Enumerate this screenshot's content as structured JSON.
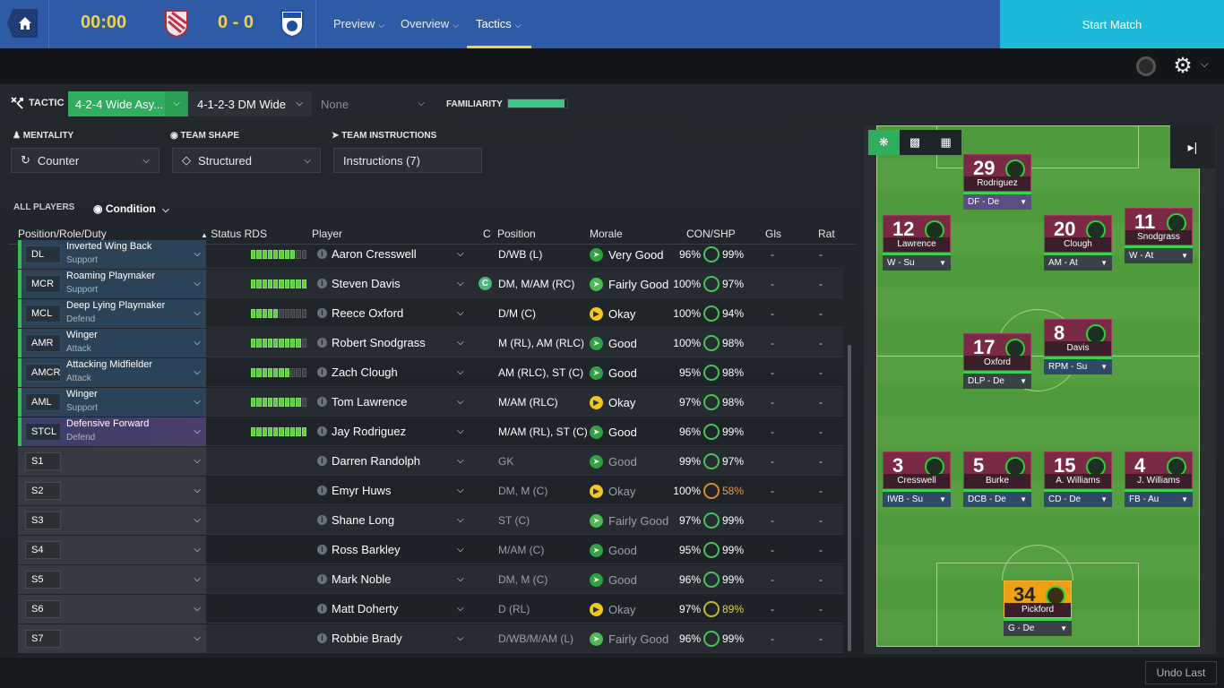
{
  "topbar": {
    "clock": "00:00",
    "score": "0 - 0",
    "nav": [
      {
        "label": "Preview"
      },
      {
        "label": "Overview"
      },
      {
        "label": "Tactics"
      }
    ],
    "start_label": "Start Match"
  },
  "tactic": {
    "label": "TACTIC",
    "tactic1": "4-2-4 Wide Asy...",
    "tactic2": "4-1-2-3 DM Wide",
    "tactic3": "None",
    "familiarity_label": "FAMILIARITY",
    "familiarity_value": 0.95
  },
  "controls": {
    "mentality_label": "MENTALITY",
    "mentality_value": "Counter",
    "shape_label": "TEAM SHAPE",
    "shape_value": "Structured",
    "instr_label": "TEAM INSTRUCTIONS",
    "instr_value": "Instructions (7)"
  },
  "table": {
    "all_players": "ALL PLAYERS",
    "condition": "Condition",
    "headers": {
      "role": "Position/Role/Duty",
      "status": "Status RDS",
      "player": "Player",
      "c": "C",
      "position": "Position",
      "morale": "Morale",
      "conshp": "CON/SHP",
      "gls": "Gls",
      "rat": "Rat"
    },
    "rows": [
      {
        "pos": "DL",
        "role": "Inverted Wing Back",
        "duty": "Support",
        "rds": 8,
        "player": "Aaron Cresswell",
        "cap": "",
        "position": "D/WB (L)",
        "morale": "Very Good",
        "mclass": "good",
        "con": "96%",
        "shp": "99%",
        "gls": "-",
        "rat": "-"
      },
      {
        "pos": "MCR",
        "role": "Roaming Playmaker",
        "duty": "Support",
        "rds": 10,
        "player": "Steven Davis",
        "cap": "C",
        "position": "DM, M/AM (RC)",
        "morale": "Fairly Good",
        "mclass": "fg",
        "con": "100%",
        "shp": "97%",
        "gls": "-",
        "rat": "-"
      },
      {
        "pos": "MCL",
        "role": "Deep Lying Playmaker",
        "duty": "Defend",
        "rds": 5,
        "player": "Reece Oxford",
        "cap": "",
        "position": "D/M (C)",
        "morale": "Okay",
        "mclass": "ok",
        "con": "100%",
        "shp": "94%",
        "gls": "-",
        "rat": "-"
      },
      {
        "pos": "AMR",
        "role": "Winger",
        "duty": "Attack",
        "rds": 9,
        "player": "Robert Snodgrass",
        "cap": "",
        "position": "M (RL), AM (RLC)",
        "morale": "Good",
        "mclass": "good",
        "con": "100%",
        "shp": "98%",
        "gls": "-",
        "rat": "-"
      },
      {
        "pos": "AMCR",
        "role": "Attacking Midfielder",
        "duty": "Attack",
        "rds": 7,
        "player": "Zach Clough",
        "cap": "",
        "position": "AM (RLC), ST (C)",
        "morale": "Good",
        "mclass": "good",
        "con": "95%",
        "shp": "98%",
        "gls": "-",
        "rat": "-"
      },
      {
        "pos": "AML",
        "role": "Winger",
        "duty": "Support",
        "rds": 9,
        "player": "Tom Lawrence",
        "cap": "",
        "position": "M/AM (RLC)",
        "morale": "Okay",
        "mclass": "ok",
        "con": "97%",
        "shp": "98%",
        "gls": "-",
        "rat": "-"
      },
      {
        "pos": "STCL",
        "role": "Defensive Forward",
        "duty": "Defend",
        "rds": 10,
        "player": "Jay Rodriguez",
        "cap": "",
        "position": "M/AM (RL), ST (C)",
        "morale": "Good",
        "mclass": "good",
        "con": "96%",
        "shp": "99%",
        "gls": "-",
        "rat": "-"
      }
    ],
    "subs": [
      {
        "pos": "S1",
        "player": "Darren Randolph",
        "position": "GK",
        "morale": "Good",
        "mclass": "good",
        "con": "99%",
        "shp": "97%",
        "sclass": "",
        "gls": "-",
        "rat": "-"
      },
      {
        "pos": "S2",
        "player": "Emyr Huws",
        "position": "DM, M (C)",
        "morale": "Okay",
        "mclass": "ok",
        "con": "100%",
        "shp": "58%",
        "sclass": "low",
        "gls": "-",
        "rat": "-"
      },
      {
        "pos": "S3",
        "player": "Shane Long",
        "position": "ST (C)",
        "morale": "Fairly Good",
        "mclass": "fg",
        "con": "97%",
        "shp": "99%",
        "sclass": "",
        "gls": "-",
        "rat": "-"
      },
      {
        "pos": "S4",
        "player": "Ross Barkley",
        "position": "M/AM (C)",
        "morale": "Good",
        "mclass": "good",
        "con": "95%",
        "shp": "99%",
        "sclass": "",
        "gls": "-",
        "rat": "-"
      },
      {
        "pos": "S5",
        "player": "Mark Noble",
        "position": "DM, M (C)",
        "morale": "Good",
        "mclass": "good",
        "con": "96%",
        "shp": "99%",
        "sclass": "",
        "gls": "-",
        "rat": "-"
      },
      {
        "pos": "S6",
        "player": "Matt Doherty",
        "position": "D (RL)",
        "morale": "Okay",
        "mclass": "ok",
        "con": "97%",
        "shp": "89%",
        "sclass": "mid",
        "gls": "-",
        "rat": "-"
      },
      {
        "pos": "S7",
        "player": "Robbie Brady",
        "position": "D/WB/M/AM (L)",
        "morale": "Fairly Good",
        "mclass": "fg",
        "con": "96%",
        "shp": "99%",
        "sclass": "",
        "gls": "-",
        "rat": "-"
      }
    ]
  },
  "pitch": {
    "cards": [
      {
        "num": "29",
        "name": "Rodriguez",
        "role": "DF - De",
        "cls": "dfw"
      },
      {
        "num": "12",
        "name": "Lawrence",
        "role": "W - Su",
        "cls": "att"
      },
      {
        "num": "20",
        "name": "Clough",
        "role": "AM - At",
        "cls": "att"
      },
      {
        "num": "11",
        "name": "Snodgrass",
        "role": "W - At",
        "cls": "att"
      },
      {
        "num": "17",
        "name": "Oxford",
        "role": "DLP - De",
        "cls": "att"
      },
      {
        "num": "8",
        "name": "Davis",
        "role": "RPM - Su",
        "cls": "mid"
      },
      {
        "num": "3",
        "name": "Cresswell",
        "role": "IWB - Su",
        "cls": "mid"
      },
      {
        "num": "5",
        "name": "Burke",
        "role": "DCB - De",
        "cls": "mid"
      },
      {
        "num": "15",
        "name": "A. Williams",
        "role": "CD - De",
        "cls": "mid"
      },
      {
        "num": "4",
        "name": "J. Williams",
        "role": "FB - Au",
        "cls": "mid"
      },
      {
        "num": "34",
        "name": "Pickford",
        "role": "G - De",
        "cls": "gk"
      }
    ]
  },
  "footer": {
    "undo_label": "Undo Last"
  }
}
